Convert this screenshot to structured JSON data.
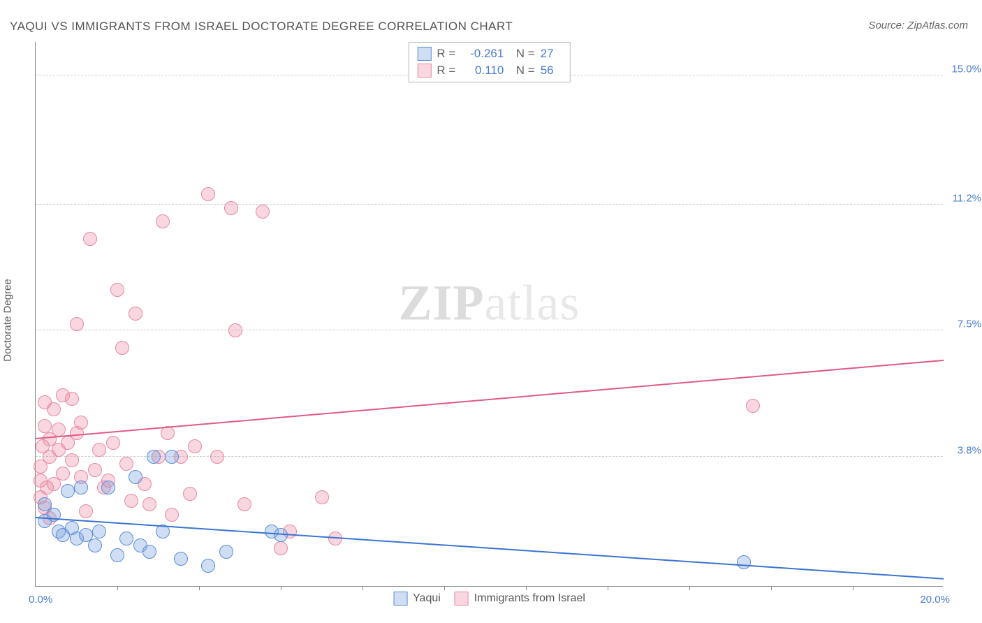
{
  "title": "YAQUI VS IMMIGRANTS FROM ISRAEL DOCTORATE DEGREE CORRELATION CHART",
  "source": "Source: ZipAtlas.com",
  "watermark": {
    "bold": "ZIP",
    "rest": "atlas"
  },
  "chart": {
    "type": "scatter",
    "yaxis_title": "Doctorate Degree",
    "xlim": [
      0,
      20
    ],
    "ylim": [
      0,
      16
    ],
    "yticks": [
      {
        "val": 3.8,
        "label": "3.8%"
      },
      {
        "val": 7.5,
        "label": "7.5%"
      },
      {
        "val": 11.2,
        "label": "11.2%"
      },
      {
        "val": 15.0,
        "label": "15.0%"
      }
    ],
    "xticks_label": {
      "min": "0.0%",
      "max": "20.0%"
    },
    "xtick_positions": [
      1.8,
      3.6,
      5.4,
      7.2,
      9.0,
      10.8,
      12.6,
      14.4,
      16.2,
      18.0
    ],
    "grid_color": "#cccccc",
    "tick_label_color": "#4a7bd0",
    "background_color": "#ffffff",
    "point_radius": 10,
    "series": {
      "yaqui": {
        "label": "Yaqui",
        "fill": "rgba(120,160,220,0.35)",
        "stroke": "#5a8cd8",
        "R": "-0.261",
        "N": "27",
        "trend": {
          "y_at_x0": 2.0,
          "y_at_xmax": 0.2,
          "color": "#3a74d0"
        },
        "points": [
          [
            0.2,
            1.9
          ],
          [
            0.2,
            2.4
          ],
          [
            0.4,
            2.1
          ],
          [
            0.5,
            1.6
          ],
          [
            0.6,
            1.5
          ],
          [
            0.7,
            2.8
          ],
          [
            0.8,
            1.7
          ],
          [
            0.9,
            1.4
          ],
          [
            1.0,
            2.9
          ],
          [
            1.1,
            1.5
          ],
          [
            1.3,
            1.2
          ],
          [
            1.4,
            1.6
          ],
          [
            1.6,
            2.9
          ],
          [
            1.8,
            0.9
          ],
          [
            2.0,
            1.4
          ],
          [
            2.2,
            3.2
          ],
          [
            2.3,
            1.2
          ],
          [
            2.5,
            1.0
          ],
          [
            2.6,
            3.8
          ],
          [
            2.8,
            1.6
          ],
          [
            3.0,
            3.8
          ],
          [
            3.2,
            0.8
          ],
          [
            3.8,
            0.6
          ],
          [
            4.2,
            1.0
          ],
          [
            5.2,
            1.6
          ],
          [
            5.4,
            1.5
          ],
          [
            15.6,
            0.7
          ]
        ]
      },
      "israel": {
        "label": "Immigrants from Israel",
        "fill": "rgba(235,140,165,0.35)",
        "stroke": "#e8889f",
        "R": "0.110",
        "N": "56",
        "trend": {
          "y_at_x0": 4.3,
          "y_at_xmax": 6.6,
          "color": "#e05a85"
        },
        "points": [
          [
            0.1,
            2.6
          ],
          [
            0.1,
            3.1
          ],
          [
            0.1,
            3.5
          ],
          [
            0.2,
            2.3
          ],
          [
            0.2,
            4.7
          ],
          [
            0.2,
            5.4
          ],
          [
            0.3,
            3.8
          ],
          [
            0.3,
            4.3
          ],
          [
            0.3,
            2.0
          ],
          [
            0.4,
            5.2
          ],
          [
            0.4,
            3.0
          ],
          [
            0.5,
            4.0
          ],
          [
            0.5,
            4.6
          ],
          [
            0.6,
            5.6
          ],
          [
            0.6,
            3.3
          ],
          [
            0.7,
            4.2
          ],
          [
            0.8,
            5.5
          ],
          [
            0.8,
            3.7
          ],
          [
            0.9,
            4.5
          ],
          [
            0.9,
            7.7
          ],
          [
            1.0,
            3.2
          ],
          [
            1.0,
            4.8
          ],
          [
            1.2,
            10.2
          ],
          [
            1.3,
            3.4
          ],
          [
            1.4,
            4.0
          ],
          [
            1.5,
            2.9
          ],
          [
            1.6,
            3.1
          ],
          [
            1.7,
            4.2
          ],
          [
            1.8,
            8.7
          ],
          [
            1.9,
            7.0
          ],
          [
            2.0,
            3.6
          ],
          [
            2.1,
            2.5
          ],
          [
            2.2,
            8.0
          ],
          [
            2.4,
            3.0
          ],
          [
            2.5,
            2.4
          ],
          [
            2.7,
            3.8
          ],
          [
            2.8,
            10.7
          ],
          [
            3.0,
            2.1
          ],
          [
            3.2,
            3.8
          ],
          [
            3.4,
            2.7
          ],
          [
            3.5,
            4.1
          ],
          [
            3.8,
            11.5
          ],
          [
            4.0,
            3.8
          ],
          [
            4.3,
            11.1
          ],
          [
            4.4,
            7.5
          ],
          [
            4.6,
            2.4
          ],
          [
            5.0,
            11.0
          ],
          [
            5.4,
            1.1
          ],
          [
            5.6,
            1.6
          ],
          [
            6.3,
            2.6
          ],
          [
            6.6,
            1.4
          ],
          [
            15.8,
            5.3
          ],
          [
            2.9,
            4.5
          ],
          [
            1.1,
            2.2
          ],
          [
            0.15,
            4.1
          ],
          [
            0.25,
            2.9
          ]
        ]
      }
    }
  }
}
